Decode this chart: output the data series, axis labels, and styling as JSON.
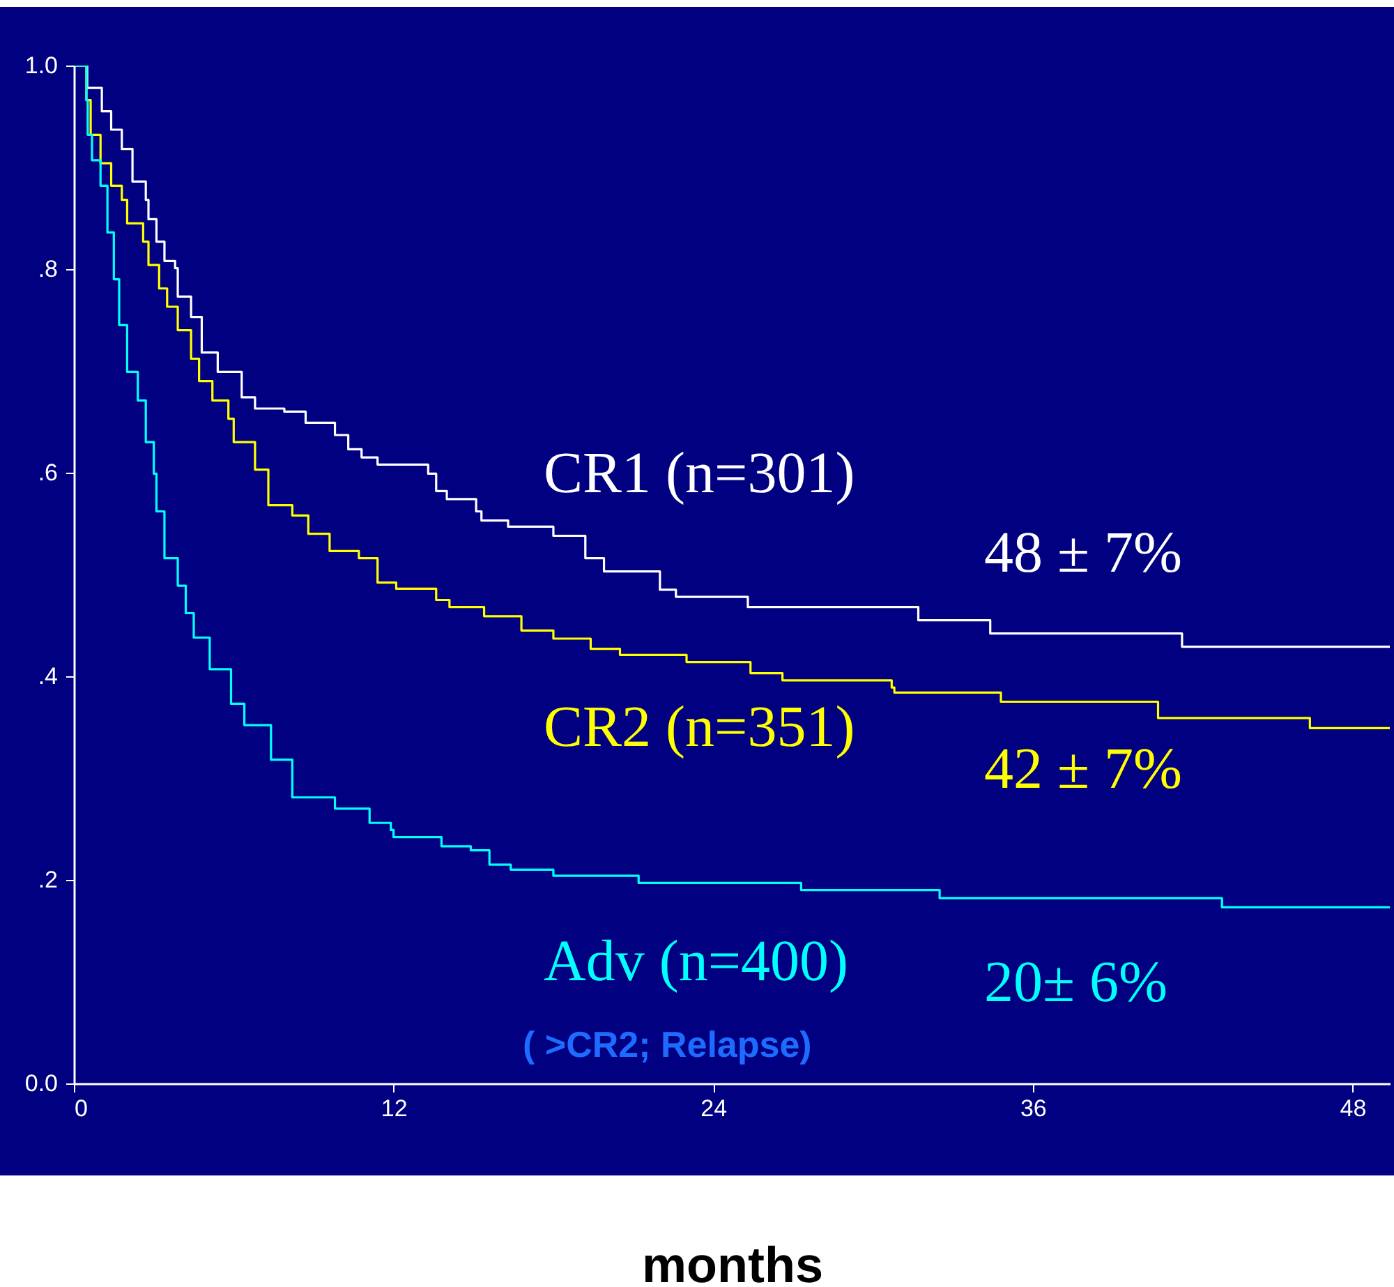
{
  "chart_data": {
    "type": "step",
    "xlabel": "months",
    "xlim": [
      0,
      49.4
    ],
    "xticks": [
      0,
      12,
      24,
      36,
      48
    ],
    "ylim": [
      0,
      1.0
    ],
    "yticks": [
      {
        "value": 0,
        "label": "0.0"
      },
      {
        "value": 0.2,
        "label": ".2"
      },
      {
        "value": 0.4,
        "label": ".4"
      },
      {
        "value": 0.6,
        "label": ".6"
      },
      {
        "value": 0.8,
        "label": ".8"
      },
      {
        "value": 1.0,
        "label": "1.0"
      }
    ],
    "grid": false,
    "legend": false,
    "line_style": "solid",
    "series": [
      {
        "name": "CR1 (n=301)",
        "color": "#ffffff",
        "x": [
          0,
          0.5,
          1.05,
          1.4,
          1.8,
          2.2,
          2.7,
          2.8,
          3.1,
          3.4,
          3.8,
          3.9,
          4.4,
          4.8,
          5.4,
          6.3,
          6.8,
          7.9,
          8.7,
          9.8,
          10.3,
          10.8,
          11.4,
          13.3,
          13.6,
          14.0,
          15.1,
          15.3,
          16.3,
          18.0,
          19.2,
          19.9,
          22.0,
          22.6,
          25.3,
          31.7,
          34.4,
          41.6,
          49.4
        ],
        "values": [
          1.0,
          0.978,
          0.955,
          0.937,
          0.918,
          0.886,
          0.868,
          0.849,
          0.827,
          0.808,
          0.801,
          0.773,
          0.753,
          0.718,
          0.699,
          0.674,
          0.663,
          0.66,
          0.649,
          0.637,
          0.623,
          0.615,
          0.608,
          0.599,
          0.582,
          0.574,
          0.562,
          0.553,
          0.547,
          0.538,
          0.516,
          0.503,
          0.485,
          0.478,
          0.468,
          0.455,
          0.442,
          0.429,
          0.429
        ]
      },
      {
        "name": "CR2 (n=351)",
        "color": "#ffff00",
        "x": [
          0,
          0.47,
          0.63,
          1.0,
          1.4,
          1.8,
          2.0,
          2.6,
          2.8,
          3.2,
          3.5,
          3.9,
          4.4,
          4.7,
          5.2,
          5.8,
          6.0,
          6.8,
          7.3,
          8.2,
          8.8,
          9.6,
          10.7,
          11.4,
          12.1,
          13.6,
          14.1,
          15.4,
          16.8,
          18.0,
          19.4,
          20.5,
          23.0,
          25.4,
          26.6,
          30.7,
          30.8,
          34.8,
          40.7,
          46.4,
          49.4
        ],
        "values": [
          1.0,
          0.966,
          0.932,
          0.904,
          0.882,
          0.868,
          0.845,
          0.827,
          0.804,
          0.781,
          0.763,
          0.74,
          0.712,
          0.69,
          0.671,
          0.653,
          0.63,
          0.603,
          0.568,
          0.558,
          0.54,
          0.523,
          0.516,
          0.492,
          0.486,
          0.475,
          0.468,
          0.459,
          0.445,
          0.437,
          0.427,
          0.421,
          0.414,
          0.403,
          0.396,
          0.389,
          0.384,
          0.375,
          0.359,
          0.349,
          0.349
        ]
      },
      {
        "name": "Adv (n=400)",
        "color": "#00ffff",
        "x": [
          0,
          0.47,
          0.52,
          0.68,
          1.0,
          1.26,
          1.5,
          1.7,
          2.0,
          2.4,
          2.7,
          3.0,
          3.1,
          3.4,
          3.9,
          4.2,
          4.5,
          5.1,
          5.9,
          6.4,
          7.4,
          8.2,
          9.8,
          11.1,
          11.9,
          12.0,
          13.8,
          14.9,
          15.6,
          16.4,
          18.0,
          21.2,
          27.3,
          32.5,
          43.1,
          49.4
        ],
        "values": [
          1.0,
          0.966,
          0.932,
          0.907,
          0.882,
          0.836,
          0.79,
          0.745,
          0.699,
          0.671,
          0.63,
          0.599,
          0.562,
          0.516,
          0.489,
          0.462,
          0.438,
          0.407,
          0.373,
          0.352,
          0.318,
          0.281,
          0.27,
          0.256,
          0.249,
          0.242,
          0.233,
          0.229,
          0.215,
          0.21,
          0.204,
          0.197,
          0.19,
          0.182,
          0.173,
          0.173
        ]
      }
    ],
    "annotations": [
      "48 ± 7%",
      "42 ± 7%",
      "20± 6%",
      "( >CR2; Relapse)"
    ]
  }
}
